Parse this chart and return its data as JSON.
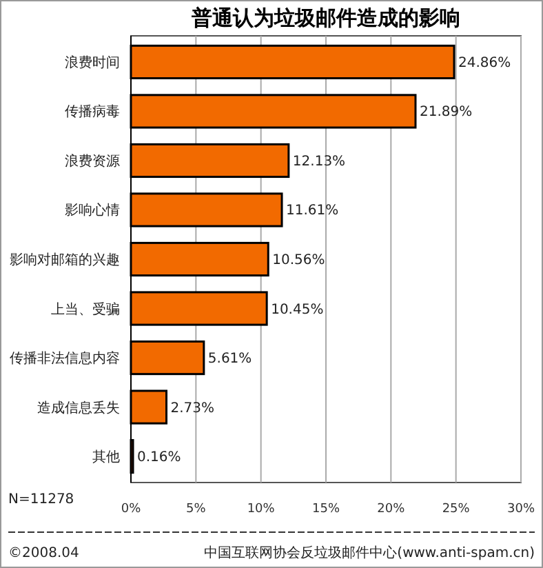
{
  "chart_data": {
    "type": "bar",
    "orientation": "horizontal",
    "title": "普通认为垃圾邮件造成的影响",
    "categories": [
      "浪费时间",
      "传播病毒",
      "浪费资源",
      "影响心情",
      "影响对邮箱的兴趣",
      "上当、受骗",
      "传播非法信息内容",
      "造成信息丢失",
      "其他"
    ],
    "values": [
      24.86,
      21.89,
      12.13,
      11.61,
      10.56,
      10.45,
      5.61,
      2.73,
      0.16
    ],
    "value_labels": [
      "24.86%",
      "21.89%",
      "12.13%",
      "11.61%",
      "10.56%",
      "10.45%",
      "5.61%",
      "2.73%",
      "0.16%"
    ],
    "color": "#f26a00",
    "xlim": [
      0,
      30
    ],
    "xticks": [
      {
        "value": 0,
        "label": "0%"
      },
      {
        "value": 5,
        "label": "5%"
      },
      {
        "value": 10,
        "label": "10%"
      },
      {
        "value": 15,
        "label": "15%"
      },
      {
        "value": 20,
        "label": "20%"
      },
      {
        "value": 25,
        "label": "25%"
      },
      {
        "value": 30,
        "label": "30%"
      }
    ],
    "grid": "x",
    "annotations": [
      "N=11278",
      "©2008.04",
      "中国互联网协会反垃圾邮件中心(www.anti-spam.cn)"
    ]
  }
}
